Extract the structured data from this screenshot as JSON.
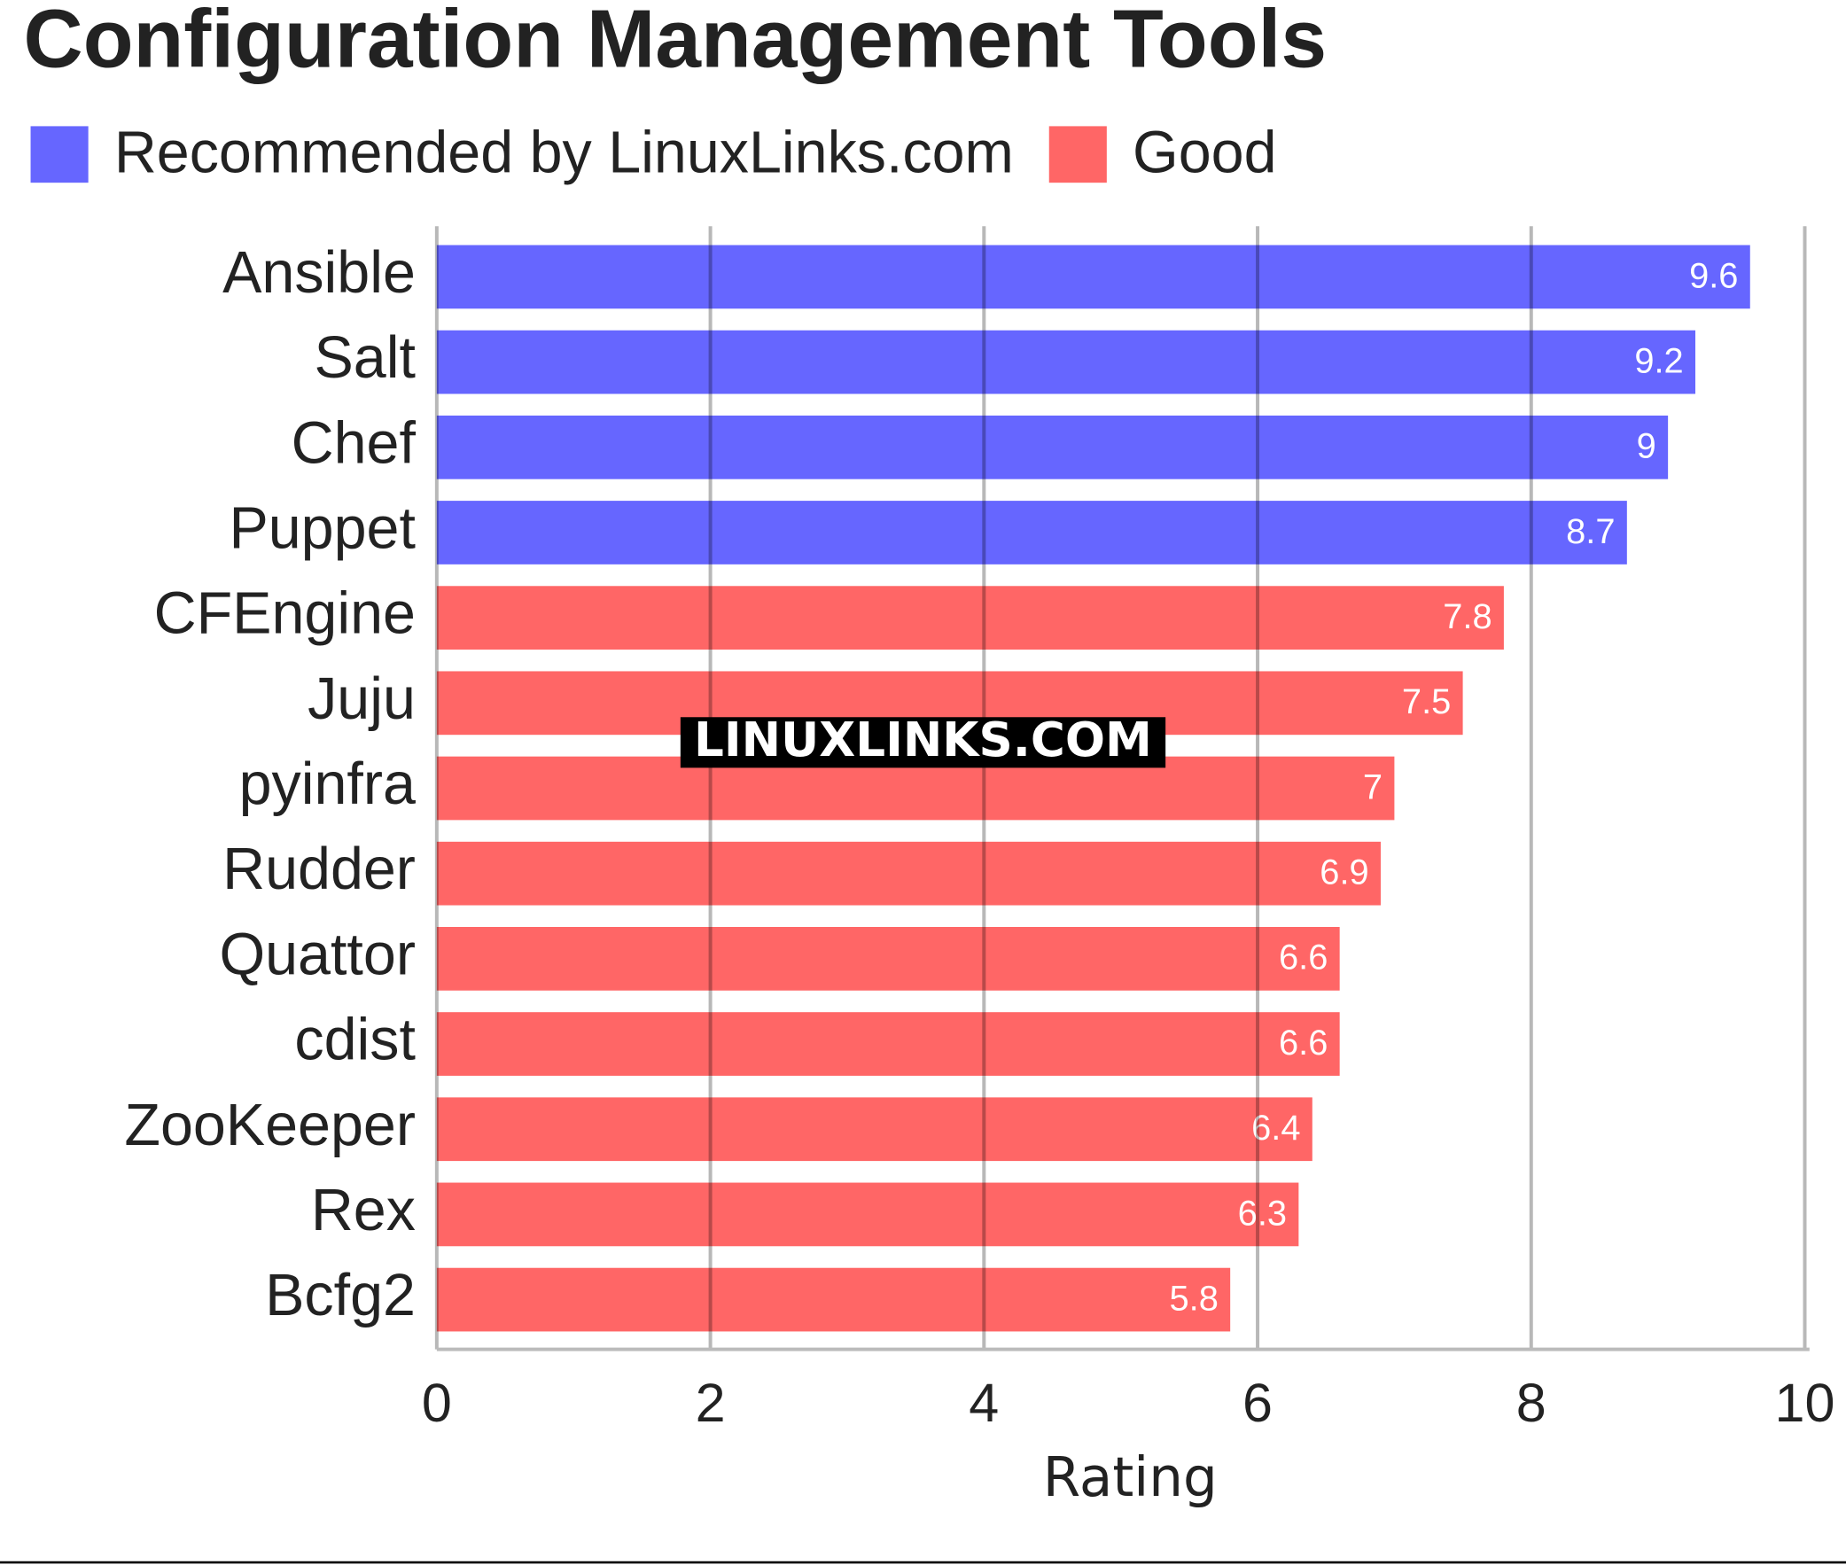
{
  "chart_data": {
    "type": "bar",
    "orientation": "horizontal",
    "title": "Configuration Management Tools",
    "watermark": "LINUXLINKS.COM",
    "x_label": "Rating",
    "categories": [
      "Ansible",
      "Salt",
      "Chef",
      "Puppet",
      "CFEngine",
      "Juju",
      "pyinfra",
      "Rudder",
      "Quattor",
      "cdist",
      "ZooKeeper",
      "Rex",
      "Bcfg2"
    ],
    "series": [
      {
        "name": "Recommended by LinuxLinks.com",
        "color": "#6666ff",
        "values": [
          9.6,
          9.2,
          9,
          8.7,
          null,
          null,
          null,
          null,
          null,
          null,
          null,
          null,
          null
        ]
      },
      {
        "name": "Good",
        "color": "#ff6666",
        "values": [
          null,
          null,
          null,
          null,
          7.8,
          7.5,
          7,
          6.9,
          6.6,
          6.6,
          6.4,
          6.3,
          5.8
        ]
      }
    ],
    "xlim": [
      0,
      10
    ],
    "xticks": [
      0,
      2,
      4,
      6,
      8,
      10
    ],
    "grid": true,
    "legend": "top-left"
  }
}
